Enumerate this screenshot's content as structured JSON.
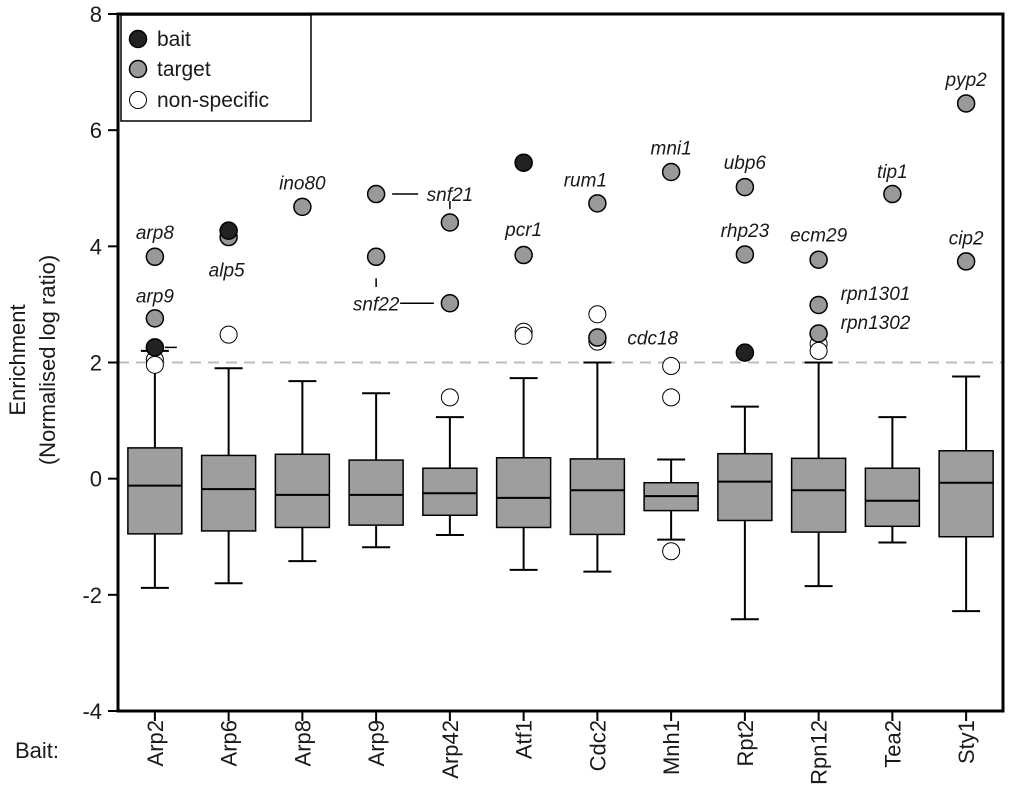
{
  "chart_data": {
    "type": "box",
    "ylabel_line1": "Enrichment",
    "ylabel_line2": "(Normalised log ratio)",
    "xlabel_prefix": "Bait:",
    "ylim": [
      -4,
      8
    ],
    "yticks": [
      "-4",
      "-2",
      "0",
      "2",
      "4",
      "6",
      "8"
    ],
    "threshold": 2,
    "legend": [
      {
        "label": "bait",
        "color": "#222222"
      },
      {
        "label": "target",
        "color": "#999999"
      },
      {
        "label": "non-specific",
        "color": "#ffffff"
      }
    ],
    "categories": [
      "Arp2",
      "Arp6",
      "Arp8",
      "Arp9",
      "Arp42",
      "Atf1",
      "Cdc2",
      "Mnh1",
      "Rpt2",
      "Rpn12",
      "Tea2",
      "Sty1"
    ],
    "boxes": [
      {
        "whisker_low": -1.88,
        "q1": -0.95,
        "median": -0.12,
        "q3": 0.53,
        "whisker_high": 2.2
      },
      {
        "whisker_low": -1.8,
        "q1": -0.9,
        "median": -0.18,
        "q3": 0.4,
        "whisker_high": 1.9
      },
      {
        "whisker_low": -1.42,
        "q1": -0.84,
        "median": -0.28,
        "q3": 0.42,
        "whisker_high": 1.68
      },
      {
        "whisker_low": -1.18,
        "q1": -0.8,
        "median": -0.28,
        "q3": 0.32,
        "whisker_high": 1.47
      },
      {
        "whisker_low": -0.97,
        "q1": -0.63,
        "median": -0.25,
        "q3": 0.18,
        "whisker_high": 1.06
      },
      {
        "whisker_low": -1.57,
        "q1": -0.84,
        "median": -0.33,
        "q3": 0.36,
        "whisker_high": 1.73
      },
      {
        "whisker_low": -1.6,
        "q1": -0.96,
        "median": -0.2,
        "q3": 0.34,
        "whisker_high": 2.0
      },
      {
        "whisker_low": -1.05,
        "q1": -0.55,
        "median": -0.3,
        "q3": -0.07,
        "whisker_high": 0.33
      },
      {
        "whisker_low": -2.42,
        "q1": -0.72,
        "median": -0.05,
        "q3": 0.43,
        "whisker_high": 1.24
      },
      {
        "whisker_low": -1.85,
        "q1": -0.92,
        "median": -0.2,
        "q3": 0.35,
        "whisker_high": 2.0
      },
      {
        "whisker_low": -1.1,
        "q1": -0.82,
        "median": -0.38,
        "q3": 0.18,
        "whisker_high": 1.06
      },
      {
        "whisker_low": -2.28,
        "q1": -1.0,
        "median": -0.07,
        "q3": 0.48,
        "whisker_high": 1.76
      }
    ],
    "points": [
      {
        "cat": 0,
        "y": 3.82,
        "type": "target"
      },
      {
        "cat": 0,
        "y": 2.76,
        "type": "target"
      },
      {
        "cat": 0,
        "y": 2.26,
        "type": "bait"
      },
      {
        "cat": 0,
        "y": 2.05,
        "type": "non-specific"
      },
      {
        "cat": 0,
        "y": 1.96,
        "type": "non-specific"
      },
      {
        "cat": 1,
        "y": 4.27,
        "type": "bait"
      },
      {
        "cat": 1,
        "y": 4.16,
        "type": "target"
      },
      {
        "cat": 1,
        "y": 2.48,
        "type": "non-specific"
      },
      {
        "cat": 2,
        "y": 4.68,
        "type": "target"
      },
      {
        "cat": 3,
        "y": 4.9,
        "type": "target"
      },
      {
        "cat": 3,
        "y": 3.82,
        "type": "target"
      },
      {
        "cat": 4,
        "y": 4.41,
        "type": "target"
      },
      {
        "cat": 4,
        "y": 3.02,
        "type": "target"
      },
      {
        "cat": 4,
        "y": 1.4,
        "type": "non-specific"
      },
      {
        "cat": 5,
        "y": 5.44,
        "type": "bait"
      },
      {
        "cat": 5,
        "y": 3.85,
        "type": "target"
      },
      {
        "cat": 5,
        "y": 2.53,
        "type": "non-specific"
      },
      {
        "cat": 5,
        "y": 2.46,
        "type": "non-specific"
      },
      {
        "cat": 6,
        "y": 4.74,
        "type": "target"
      },
      {
        "cat": 6,
        "y": 2.83,
        "type": "non-specific"
      },
      {
        "cat": 6,
        "y": 2.43,
        "type": "target"
      },
      {
        "cat": 6,
        "y": 2.36,
        "type": "non-specific"
      },
      {
        "cat": 7,
        "y": 5.28,
        "type": "target"
      },
      {
        "cat": 7,
        "y": 1.94,
        "type": "non-specific"
      },
      {
        "cat": 7,
        "y": 1.4,
        "type": "non-specific"
      },
      {
        "cat": 7,
        "y": -1.25,
        "type": "non-specific"
      },
      {
        "cat": 8,
        "y": 5.02,
        "type": "target"
      },
      {
        "cat": 8,
        "y": 3.86,
        "type": "target"
      },
      {
        "cat": 8,
        "y": 2.17,
        "type": "bait"
      },
      {
        "cat": 9,
        "y": 3.77,
        "type": "target"
      },
      {
        "cat": 9,
        "y": 2.99,
        "type": "target"
      },
      {
        "cat": 9,
        "y": 2.5,
        "type": "target"
      },
      {
        "cat": 9,
        "y": 2.32,
        "type": "non-specific"
      },
      {
        "cat": 9,
        "y": 2.2,
        "type": "non-specific"
      },
      {
        "cat": 10,
        "y": 4.9,
        "type": "target"
      },
      {
        "cat": 11,
        "y": 6.46,
        "type": "target"
      },
      {
        "cat": 11,
        "y": 3.74,
        "type": "target"
      }
    ],
    "annotations": [
      {
        "text": "arp8",
        "cat": 0,
        "y": 4.25,
        "anchor": "middle",
        "dx": 0
      },
      {
        "text": "arp9",
        "cat": 0,
        "y": 3.15,
        "anchor": "middle",
        "dx": 0
      },
      {
        "text": "alp5",
        "cat": 1,
        "y": 3.6,
        "anchor": "middle",
        "dx": -2
      },
      {
        "text": "ino80",
        "cat": 2,
        "y": 5.1,
        "anchor": "middle",
        "dx": 0
      },
      {
        "text": "snf21",
        "cat": 4,
        "y": 4.9,
        "anchor": "middle",
        "dx": 0
      },
      {
        "text": "snf22",
        "cat": 3,
        "y": 3.02,
        "anchor": "middle",
        "dx": 0
      },
      {
        "text": "pcr1",
        "cat": 5,
        "y": 4.3,
        "anchor": "middle",
        "dx": 0
      },
      {
        "text": "rum1",
        "cat": 6,
        "y": 5.15,
        "anchor": "middle",
        "dx": -12
      },
      {
        "text": "cdc18",
        "cat": 6,
        "y": 2.43,
        "anchor": "start",
        "dx": 30
      },
      {
        "text": "mni1",
        "cat": 7,
        "y": 5.7,
        "anchor": "middle",
        "dx": 0
      },
      {
        "text": "ubp6",
        "cat": 8,
        "y": 5.45,
        "anchor": "middle",
        "dx": 0
      },
      {
        "text": "rhp23",
        "cat": 8,
        "y": 4.28,
        "anchor": "middle",
        "dx": 0
      },
      {
        "text": "ecm29",
        "cat": 9,
        "y": 4.2,
        "anchor": "middle",
        "dx": 0
      },
      {
        "text": "rpn1301",
        "cat": 9,
        "y": 3.2,
        "anchor": "start",
        "dx": 22
      },
      {
        "text": "rpn1302",
        "cat": 9,
        "y": 2.7,
        "anchor": "start",
        "dx": 22
      },
      {
        "text": "tip1",
        "cat": 10,
        "y": 5.3,
        "anchor": "middle",
        "dx": 0
      },
      {
        "text": "pyp2",
        "cat": 11,
        "y": 6.88,
        "anchor": "middle",
        "dx": 0
      },
      {
        "text": "cip2",
        "cat": 11,
        "y": 4.15,
        "anchor": "middle",
        "dx": 0
      }
    ]
  }
}
